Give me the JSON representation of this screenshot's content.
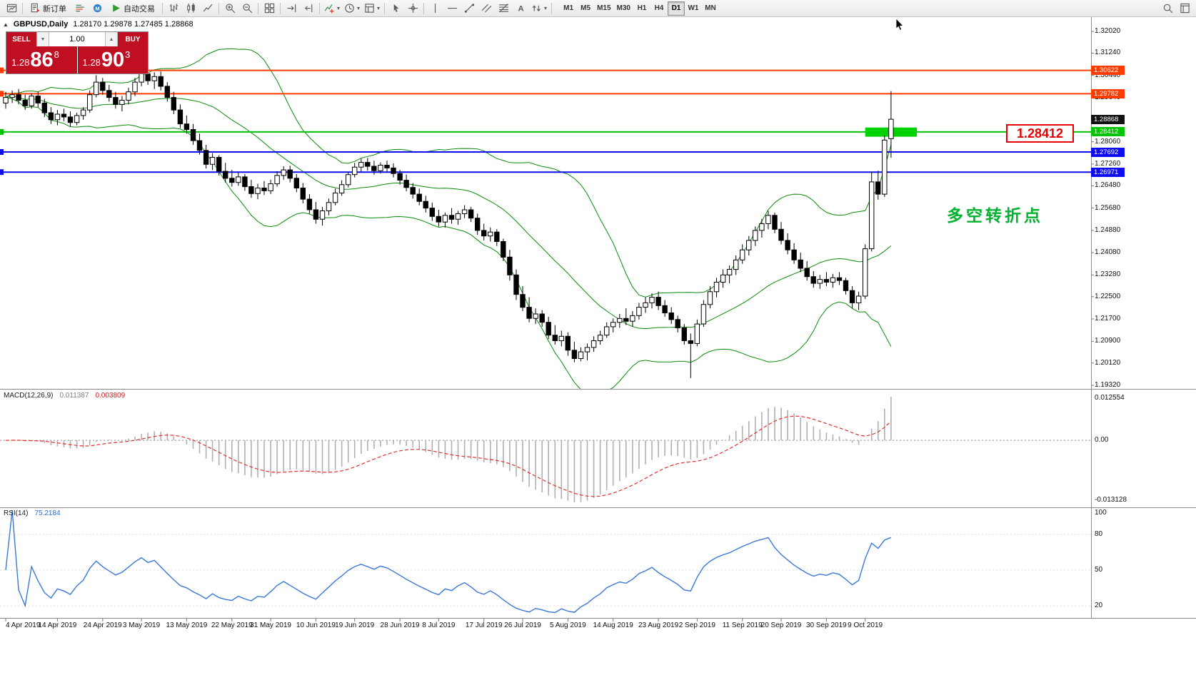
{
  "toolbar": {
    "items": [
      {
        "icon": "new-chart-icon"
      },
      {
        "sep": true
      },
      {
        "icon": "new-order-icon",
        "label": "新订单"
      },
      {
        "icon": "market-depth-icon"
      },
      {
        "icon": "mql-community-icon"
      },
      {
        "icon": "autotrading-icon",
        "label": "自动交易"
      },
      {
        "sep": true
      },
      {
        "icon": "bar-chart-icon"
      },
      {
        "icon": "candlestick-icon"
      },
      {
        "icon": "line-chart-icon"
      },
      {
        "sep": true
      },
      {
        "icon": "zoom-in-icon"
      },
      {
        "icon": "zoom-out-icon"
      },
      {
        "sep": true
      },
      {
        "icon": "tile-windows-icon"
      },
      {
        "sep": true
      },
      {
        "icon": "auto-scroll-icon"
      },
      {
        "icon": "chart-shift-icon"
      },
      {
        "sep": true
      },
      {
        "icon": "indicators-icon",
        "caret": true
      },
      {
        "icon": "periods-icon",
        "caret": true
      },
      {
        "icon": "templates-icon",
        "caret": true
      },
      {
        "sep": true
      },
      {
        "icon": "cursor-icon"
      },
      {
        "icon": "crosshair-icon"
      },
      {
        "sep": true
      },
      {
        "icon": "vertical-line-icon"
      },
      {
        "icon": "horizontal-line-icon"
      },
      {
        "icon": "trendline-icon"
      },
      {
        "icon": "channel-icon"
      },
      {
        "icon": "fibonacci-icon"
      },
      {
        "icon": "text-icon"
      },
      {
        "icon": "arrows-icon",
        "caret": true
      },
      {
        "sep": true
      }
    ],
    "timeframes": [
      "M1",
      "M5",
      "M15",
      "M30",
      "H1",
      "H4",
      "D1",
      "W1",
      "MN"
    ],
    "active_timeframe": "D1",
    "right_items": [
      {
        "icon": "search-icon"
      },
      {
        "icon": "data-window-icon"
      }
    ]
  },
  "chart": {
    "symbol_label": "GBPUSD,Daily",
    "ohlc": "1.28170 1.29878 1.27485 1.28868",
    "current_price": "1.28868",
    "trade_panel": {
      "sell_label": "SELL",
      "buy_label": "BUY",
      "volume": "1.00",
      "sell_price_prefix": "1.28",
      "sell_price_big": "86",
      "sell_price_sup": "8",
      "buy_price_prefix": "1.28",
      "buy_price_big": "90",
      "buy_price_sup": "3"
    },
    "price_axis": [
      "1.32020",
      "1.31240",
      "1.30440",
      "1.29640",
      "1.28060",
      "1.27260",
      "1.26480",
      "1.25680",
      "1.24880",
      "1.24080",
      "1.23280",
      "1.22500",
      "1.21700",
      "1.20900",
      "1.20120",
      "1.19320"
    ],
    "date_axis": [
      {
        "label": "4 Apr 2019",
        "i": 0
      },
      {
        "label": "14 Apr 2019",
        "i": 8
      },
      {
        "label": "24 Apr 2019",
        "i": 15
      },
      {
        "label": "3 May 2019",
        "i": 21
      },
      {
        "label": "13 May 2019",
        "i": 28
      },
      {
        "label": "22 May 2019",
        "i": 35
      },
      {
        "label": "31 May 2019",
        "i": 41
      },
      {
        "label": "10 Jun 2019",
        "i": 48
      },
      {
        "label": "19 Jun 2019",
        "i": 54
      },
      {
        "label": "28 Jun 2019",
        "i": 61
      },
      {
        "label": "8 Jul 2019",
        "i": 67
      },
      {
        "label": "17 Jul 2019",
        "i": 74
      },
      {
        "label": "26 Jul 2019",
        "i": 80
      },
      {
        "label": "5 Aug 2019",
        "i": 87
      },
      {
        "label": "14 Aug 2019",
        "i": 94
      },
      {
        "label": "23 Aug 2019",
        "i": 101
      },
      {
        "label": "2 Sep 2019",
        "i": 107
      },
      {
        "label": "11 Sep 2019",
        "i": 114
      },
      {
        "label": "20 Sep 2019",
        "i": 120
      },
      {
        "label": "30 Sep 2019",
        "i": 127
      },
      {
        "label": "9 Oct 2019",
        "i": 133
      }
    ]
  },
  "macd": {
    "title": "MACD(12,26,9)",
    "value_main": "0.011387",
    "value_signal": "0.003809",
    "axis_max": "0.012554",
    "axis_zero": "0.00",
    "axis_min": "-0.013128"
  },
  "rsi": {
    "title": "RSI(14)",
    "value": "75.2184",
    "levels": [
      "100",
      "80",
      "50",
      "20"
    ]
  },
  "chart_data": {
    "type": "candlestick",
    "symbol": "GBPUSD",
    "timeframe": "Daily",
    "last_ohlc": {
      "open": 1.2817,
      "high": 1.29878,
      "low": 1.27485,
      "close": 1.28868
    },
    "indicators": {
      "bollinger": {
        "period": 20,
        "deviation": 2,
        "color": "#0b8a0b"
      },
      "macd": {
        "fast": 12,
        "slow": 26,
        "signal": 9,
        "histogram_color": "#b0b0b0",
        "signal_color": "#e03030"
      },
      "rsi": {
        "period": 14,
        "color": "#3c78d8"
      }
    },
    "horizontal_lines": [
      {
        "price": 1.30622,
        "label": "1.30622",
        "color": "#ff3c00"
      },
      {
        "price": 1.29782,
        "label": "1.29782",
        "color": "#ff3c00"
      },
      {
        "price": 1.28412,
        "label": "1.28412",
        "color": "#00c400"
      },
      {
        "price": 1.27692,
        "label": "1.27692",
        "color": "#0d0df0"
      },
      {
        "price": 1.26971,
        "label": "1.26971",
        "color": "#0d0df0"
      }
    ],
    "rectangle": {
      "i_start": 133,
      "i_end": 141,
      "price_top": 1.2857,
      "price_bottom": 1.2824,
      "color": "#00d200"
    },
    "price_label_box": {
      "text": "1.28412",
      "color": "#e60000"
    },
    "annotation": {
      "text": "多空转折点",
      "color": "#00b22d"
    },
    "candles": [
      [
        1.2945,
        1.2985,
        1.2925,
        1.2965
      ],
      [
        1.2965,
        1.299,
        1.2945,
        1.2975
      ],
      [
        1.2975,
        1.2995,
        1.294,
        1.2955
      ],
      [
        1.2955,
        1.2975,
        1.292,
        1.2935
      ],
      [
        1.2935,
        1.298,
        1.2925,
        1.297
      ],
      [
        1.297,
        1.2985,
        1.293,
        1.2945
      ],
      [
        1.2945,
        1.296,
        1.2895,
        1.291
      ],
      [
        1.291,
        1.293,
        1.287,
        1.2885
      ],
      [
        1.2885,
        1.292,
        1.2865,
        1.2905
      ],
      [
        1.2905,
        1.2925,
        1.288,
        1.2895
      ],
      [
        1.2895,
        1.2915,
        1.286,
        1.2875
      ],
      [
        1.2875,
        1.291,
        1.2865,
        1.29
      ],
      [
        1.29,
        1.293,
        1.2885,
        1.292
      ],
      [
        1.292,
        1.299,
        1.291,
        1.2975
      ],
      [
        1.2975,
        1.3045,
        1.2965,
        1.302
      ],
      [
        1.302,
        1.3035,
        1.2975,
        1.299
      ],
      [
        1.299,
        1.301,
        1.295,
        1.2965
      ],
      [
        1.2965,
        1.2985,
        1.2925,
        1.294
      ],
      [
        1.294,
        1.297,
        1.2915,
        1.2955
      ],
      [
        1.2955,
        1.3,
        1.294,
        1.2985
      ],
      [
        1.2985,
        1.3035,
        1.297,
        1.302
      ],
      [
        1.302,
        1.3065,
        1.3005,
        1.305
      ],
      [
        1.305,
        1.307,
        1.301,
        1.3025
      ],
      [
        1.3025,
        1.3055,
        1.2995,
        1.304
      ],
      [
        1.304,
        1.3058,
        1.299,
        1.3005
      ],
      [
        1.3005,
        1.302,
        1.295,
        1.2965
      ],
      [
        1.2965,
        1.2985,
        1.2905,
        1.292
      ],
      [
        1.292,
        1.294,
        1.2855,
        1.287
      ],
      [
        1.287,
        1.29,
        1.2835,
        1.285
      ],
      [
        1.285,
        1.287,
        1.2795,
        1.281
      ],
      [
        1.281,
        1.2835,
        1.276,
        1.2775
      ],
      [
        1.2775,
        1.2795,
        1.271,
        1.2725
      ],
      [
        1.2725,
        1.2765,
        1.2705,
        1.275
      ],
      [
        1.275,
        1.2758,
        1.2685,
        1.27
      ],
      [
        1.27,
        1.273,
        1.266,
        1.2675
      ],
      [
        1.2675,
        1.2705,
        1.2645,
        1.266
      ],
      [
        1.266,
        1.2695,
        1.2648,
        1.268
      ],
      [
        1.268,
        1.269,
        1.263,
        1.2645
      ],
      [
        1.2645,
        1.267,
        1.2605,
        1.262
      ],
      [
        1.262,
        1.2655,
        1.26,
        1.264
      ],
      [
        1.264,
        1.2665,
        1.2615,
        1.263
      ],
      [
        1.263,
        1.267,
        1.2618,
        1.2655
      ],
      [
        1.2655,
        1.27,
        1.2645,
        1.2685
      ],
      [
        1.2685,
        1.2718,
        1.267,
        1.2705
      ],
      [
        1.2705,
        1.272,
        1.266,
        1.2675
      ],
      [
        1.2675,
        1.269,
        1.2625,
        1.264
      ],
      [
        1.264,
        1.2658,
        1.2585,
        1.26
      ],
      [
        1.26,
        1.2618,
        1.2548,
        1.2562
      ],
      [
        1.2562,
        1.259,
        1.2512,
        1.2528
      ],
      [
        1.2528,
        1.2572,
        1.2505,
        1.2558
      ],
      [
        1.2558,
        1.2602,
        1.2542,
        1.2588
      ],
      [
        1.2588,
        1.2638,
        1.2578,
        1.2622
      ],
      [
        1.2622,
        1.2668,
        1.2612,
        1.2652
      ],
      [
        1.2652,
        1.2698,
        1.2642,
        1.2688
      ],
      [
        1.2688,
        1.273,
        1.2678,
        1.2715
      ],
      [
        1.2715,
        1.2745,
        1.2698,
        1.2732
      ],
      [
        1.2732,
        1.2748,
        1.2702,
        1.2718
      ],
      [
        1.2718,
        1.2738,
        1.2688,
        1.2702
      ],
      [
        1.2702,
        1.2732,
        1.2692,
        1.2722
      ],
      [
        1.2722,
        1.2738,
        1.2698,
        1.2712
      ],
      [
        1.2712,
        1.2728,
        1.2678,
        1.2692
      ],
      [
        1.2692,
        1.2705,
        1.2652,
        1.2668
      ],
      [
        1.2668,
        1.2688,
        1.2628,
        1.2642
      ],
      [
        1.2642,
        1.2658,
        1.2602,
        1.2618
      ],
      [
        1.2618,
        1.2638,
        1.2578,
        1.2592
      ],
      [
        1.2592,
        1.2612,
        1.2552,
        1.2568
      ],
      [
        1.2568,
        1.2588,
        1.2522,
        1.2538
      ],
      [
        1.2538,
        1.2562,
        1.2502,
        1.2518
      ],
      [
        1.2518,
        1.2552,
        1.2498,
        1.2542
      ],
      [
        1.2542,
        1.2568,
        1.2512,
        1.2528
      ],
      [
        1.2528,
        1.2558,
        1.2508,
        1.2548
      ],
      [
        1.2548,
        1.2578,
        1.2532,
        1.2562
      ],
      [
        1.2562,
        1.2572,
        1.2518,
        1.2532
      ],
      [
        1.2532,
        1.2548,
        1.2472,
        1.2488
      ],
      [
        1.2488,
        1.2512,
        1.2452,
        1.2468
      ],
      [
        1.2468,
        1.2498,
        1.2448,
        1.2482
      ],
      [
        1.2482,
        1.2492,
        1.2432,
        1.2448
      ],
      [
        1.2448,
        1.2458,
        1.2378,
        1.2392
      ],
      [
        1.2392,
        1.2418,
        1.2308,
        1.2328
      ],
      [
        1.2328,
        1.2348,
        1.2238,
        1.2258
      ],
      [
        1.2258,
        1.2288,
        1.2198,
        1.2212
      ],
      [
        1.2212,
        1.2248,
        1.2158,
        1.2172
      ],
      [
        1.2172,
        1.2208,
        1.2152,
        1.2188
      ],
      [
        1.2188,
        1.2202,
        1.2142,
        1.2158
      ],
      [
        1.2158,
        1.2178,
        1.2098,
        1.2112
      ],
      [
        1.2112,
        1.2148,
        1.2078,
        1.2092
      ],
      [
        1.2092,
        1.2128,
        1.2072,
        1.2108
      ],
      [
        1.2108,
        1.2122,
        1.2038,
        1.2058
      ],
      [
        1.2058,
        1.2088,
        1.2015,
        1.2028
      ],
      [
        1.2028,
        1.2068,
        1.2018,
        1.2052
      ],
      [
        1.2052,
        1.2082,
        1.2022,
        1.2068
      ],
      [
        1.2068,
        1.2108,
        1.2052,
        1.2092
      ],
      [
        1.2092,
        1.2128,
        1.2078,
        1.2112
      ],
      [
        1.2112,
        1.2158,
        1.2102,
        1.2142
      ],
      [
        1.2142,
        1.2172,
        1.2122,
        1.2158
      ],
      [
        1.2158,
        1.2188,
        1.2138,
        1.2172
      ],
      [
        1.2172,
        1.2208,
        1.2148,
        1.2162
      ],
      [
        1.2162,
        1.2198,
        1.2142,
        1.2182
      ],
      [
        1.2182,
        1.2228,
        1.2168,
        1.2212
      ],
      [
        1.2212,
        1.2248,
        1.2192,
        1.2228
      ],
      [
        1.2228,
        1.2262,
        1.2208,
        1.2248
      ],
      [
        1.2248,
        1.2268,
        1.2202,
        1.2218
      ],
      [
        1.2218,
        1.2238,
        1.2178,
        1.2192
      ],
      [
        1.2192,
        1.2212,
        1.2152,
        1.2168
      ],
      [
        1.2168,
        1.2182,
        1.2122,
        1.2138
      ],
      [
        1.2138,
        1.2152,
        1.2078,
        1.2092
      ],
      [
        1.2092,
        1.2118,
        1.1958,
        1.2082
      ],
      [
        1.2082,
        1.2168,
        1.2072,
        1.2152
      ],
      [
        1.2152,
        1.2238,
        1.2142,
        1.2222
      ],
      [
        1.2222,
        1.2288,
        1.2208,
        1.2268
      ],
      [
        1.2268,
        1.2318,
        1.2248,
        1.2302
      ],
      [
        1.2302,
        1.2348,
        1.2282,
        1.2328
      ],
      [
        1.2328,
        1.2362,
        1.2298,
        1.2348
      ],
      [
        1.2348,
        1.2398,
        1.2328,
        1.2382
      ],
      [
        1.2382,
        1.2438,
        1.2368,
        1.2418
      ],
      [
        1.2418,
        1.2468,
        1.2398,
        1.2452
      ],
      [
        1.2452,
        1.2502,
        1.2432,
        1.2488
      ],
      [
        1.2488,
        1.2528,
        1.2462,
        1.2512
      ],
      [
        1.2512,
        1.2558,
        1.2492,
        1.2542
      ],
      [
        1.2542,
        1.2552,
        1.2478,
        1.2492
      ],
      [
        1.2492,
        1.2518,
        1.2438,
        1.2452
      ],
      [
        1.2452,
        1.2478,
        1.2402,
        1.2418
      ],
      [
        1.2418,
        1.2442,
        1.2368,
        1.2382
      ],
      [
        1.2382,
        1.2408,
        1.2338,
        1.2352
      ],
      [
        1.2352,
        1.2378,
        1.2308,
        1.2322
      ],
      [
        1.2322,
        1.2342,
        1.2282,
        1.2298
      ],
      [
        1.2298,
        1.2328,
        1.2278,
        1.2312
      ],
      [
        1.2312,
        1.2338,
        1.2288,
        1.2302
      ],
      [
        1.2302,
        1.2332,
        1.2282,
        1.2318
      ],
      [
        1.2318,
        1.2338,
        1.2292,
        1.2308
      ],
      [
        1.2308,
        1.2318,
        1.2258,
        1.2272
      ],
      [
        1.2272,
        1.2288,
        1.2208,
        1.2228
      ],
      [
        1.2228,
        1.2268,
        1.2202,
        1.2252
      ],
      [
        1.2252,
        1.2438,
        1.2242,
        1.2422
      ],
      [
        1.2422,
        1.2698,
        1.2412,
        1.2662
      ],
      [
        1.2662,
        1.2702,
        1.2598,
        1.2618
      ],
      [
        1.2618,
        1.2828,
        1.2608,
        1.2812
      ],
      [
        1.2817,
        1.29878,
        1.27485,
        1.28868
      ]
    ]
  }
}
